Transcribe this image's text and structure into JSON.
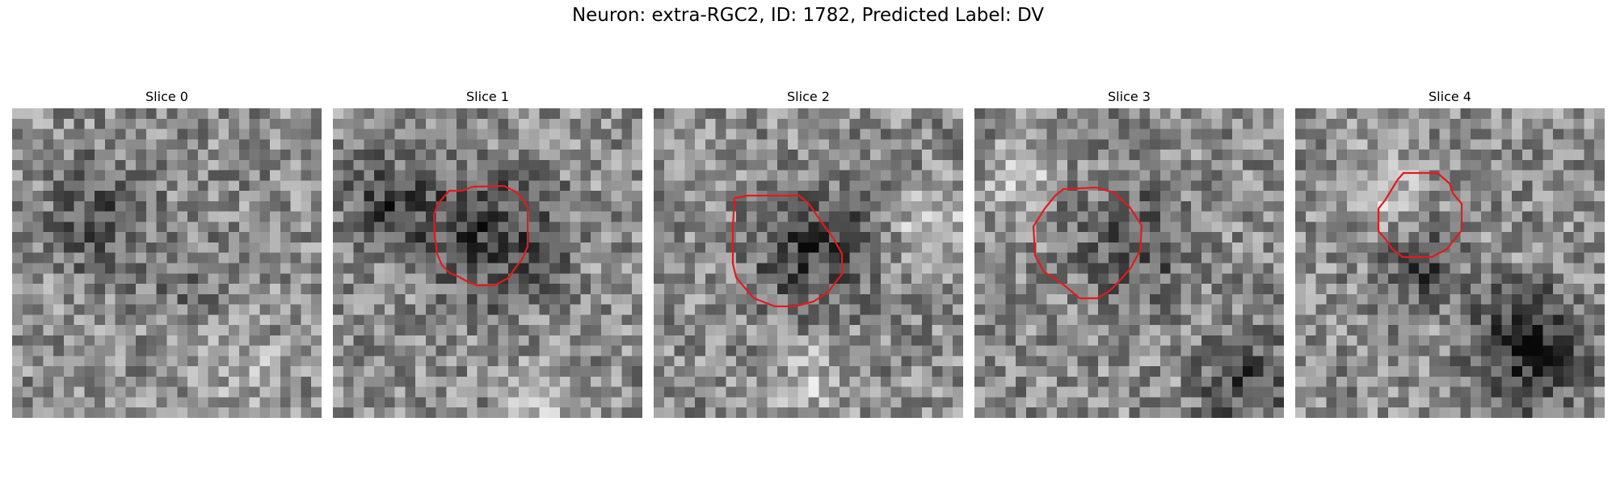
{
  "figure": {
    "title": "Neuron: extra-RGC2, ID: 1782, Predicted Label: DV"
  },
  "panels": [
    {
      "title": "Slice 0",
      "has_outline": false
    },
    {
      "title": "Slice 1",
      "has_outline": true
    },
    {
      "title": "Slice 2",
      "has_outline": true
    },
    {
      "title": "Slice 3",
      "has_outline": true
    },
    {
      "title": "Slice 4",
      "has_outline": true
    }
  ],
  "colors": {
    "outline": "#e31a1c",
    "background": "#ffffff"
  },
  "colormap": "grayscale"
}
